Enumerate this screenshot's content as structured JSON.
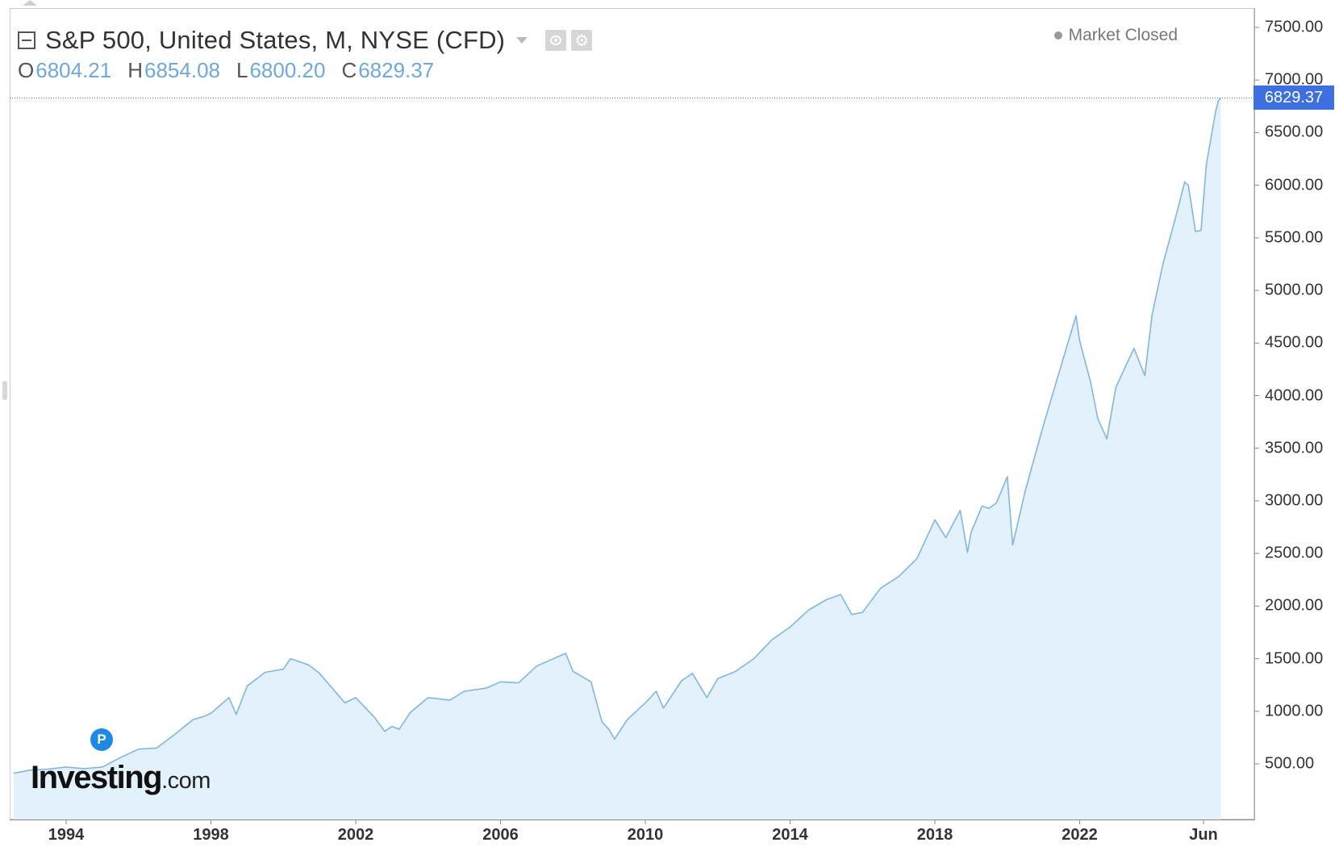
{
  "header": {
    "title": "S&P 500, United States, M, NYSE (CFD)",
    "ohlc": [
      {
        "key": "O",
        "value": "6804.21"
      },
      {
        "key": "H",
        "value": "6854.08"
      },
      {
        "key": "L",
        "value": "6800.20"
      },
      {
        "key": "C",
        "value": "6829.37"
      }
    ],
    "market_status": "Market Closed"
  },
  "last_price_label": "6829.37",
  "marker_label": "P",
  "logo": {
    "word": "Investing",
    "suffix": ".com"
  },
  "colors": {
    "line": "#7fb6e6",
    "fill": "#e2f1fb",
    "last_price_bg": "#3d6fe0",
    "marker": "#1e88e5"
  },
  "icons": [
    "collapse-icon",
    "chevron-down-icon",
    "eye-icon",
    "gear-icon"
  ],
  "chart_data": {
    "type": "area",
    "ylim": [
      0,
      7650
    ],
    "xlim": [
      1992.5,
      2026.5
    ],
    "yticks": [
      "500.00",
      "1000.00",
      "1500.00",
      "2000.00",
      "2500.00",
      "3000.00",
      "3500.00",
      "4000.00",
      "4500.00",
      "5000.00",
      "5500.00",
      "6000.00",
      "6500.00",
      "7000.00",
      "7500.00"
    ],
    "xticks": [
      {
        "label": "1994",
        "x": 1994.0
      },
      {
        "label": "1998",
        "x": 1998.0
      },
      {
        "label": "2002",
        "x": 2002.0
      },
      {
        "label": "2006",
        "x": 2006.0
      },
      {
        "label": "2010",
        "x": 2010.0
      },
      {
        "label": "2014",
        "x": 2014.0
      },
      {
        "label": "2018",
        "x": 2018.0
      },
      {
        "label": "2022",
        "x": 2022.0
      },
      {
        "label": "Jun",
        "x": 2025.42
      }
    ],
    "last_value": 6829.37,
    "points": [
      [
        1992.55,
        410
      ],
      [
        1993.0,
        440
      ],
      [
        1993.5,
        450
      ],
      [
        1994.0,
        470
      ],
      [
        1994.5,
        455
      ],
      [
        1995.0,
        470
      ],
      [
        1995.5,
        560
      ],
      [
        1996.0,
        640
      ],
      [
        1996.5,
        650
      ],
      [
        1997.0,
        780
      ],
      [
        1997.5,
        920
      ],
      [
        1997.8,
        950
      ],
      [
        1998.0,
        980
      ],
      [
        1998.5,
        1130
      ],
      [
        1998.7,
        970
      ],
      [
        1999.0,
        1240
      ],
      [
        1999.5,
        1370
      ],
      [
        2000.0,
        1400
      ],
      [
        2000.2,
        1500
      ],
      [
        2000.7,
        1440
      ],
      [
        2001.0,
        1360
      ],
      [
        2001.7,
        1080
      ],
      [
        2002.0,
        1130
      ],
      [
        2002.5,
        950
      ],
      [
        2002.8,
        810
      ],
      [
        2003.0,
        855
      ],
      [
        2003.2,
        830
      ],
      [
        2003.5,
        985
      ],
      [
        2004.0,
        1130
      ],
      [
        2004.6,
        1105
      ],
      [
        2005.0,
        1190
      ],
      [
        2005.6,
        1220
      ],
      [
        2006.0,
        1280
      ],
      [
        2006.5,
        1270
      ],
      [
        2007.0,
        1430
      ],
      [
        2007.8,
        1550
      ],
      [
        2008.0,
        1380
      ],
      [
        2008.5,
        1280
      ],
      [
        2008.8,
        900
      ],
      [
        2009.0,
        825
      ],
      [
        2009.15,
        735
      ],
      [
        2009.5,
        920
      ],
      [
        2010.0,
        1080
      ],
      [
        2010.3,
        1190
      ],
      [
        2010.5,
        1030
      ],
      [
        2011.0,
        1290
      ],
      [
        2011.3,
        1360
      ],
      [
        2011.7,
        1130
      ],
      [
        2012.0,
        1310
      ],
      [
        2012.5,
        1380
      ],
      [
        2013.0,
        1500
      ],
      [
        2013.5,
        1680
      ],
      [
        2014.0,
        1800
      ],
      [
        2014.5,
        1960
      ],
      [
        2015.0,
        2060
      ],
      [
        2015.4,
        2110
      ],
      [
        2015.7,
        1920
      ],
      [
        2016.0,
        1940
      ],
      [
        2016.5,
        2170
      ],
      [
        2017.0,
        2280
      ],
      [
        2017.5,
        2450
      ],
      [
        2018.0,
        2820
      ],
      [
        2018.3,
        2650
      ],
      [
        2018.7,
        2910
      ],
      [
        2018.9,
        2510
      ],
      [
        2019.0,
        2700
      ],
      [
        2019.3,
        2950
      ],
      [
        2019.5,
        2930
      ],
      [
        2019.7,
        2980
      ],
      [
        2020.0,
        3230
      ],
      [
        2020.15,
        2580
      ],
      [
        2020.5,
        3100
      ],
      [
        2021.0,
        3720
      ],
      [
        2021.5,
        4300
      ],
      [
        2021.9,
        4760
      ],
      [
        2022.0,
        4520
      ],
      [
        2022.3,
        4130
      ],
      [
        2022.5,
        3780
      ],
      [
        2022.75,
        3590
      ],
      [
        2023.0,
        4080
      ],
      [
        2023.5,
        4450
      ],
      [
        2023.8,
        4190
      ],
      [
        2024.0,
        4770
      ],
      [
        2024.3,
        5250
      ],
      [
        2024.7,
        5760
      ],
      [
        2024.9,
        6030
      ],
      [
        2025.0,
        6000
      ],
      [
        2025.2,
        5560
      ],
      [
        2025.35,
        5570
      ],
      [
        2025.5,
        6200
      ],
      [
        2025.75,
        6690
      ],
      [
        2025.83,
        6804
      ],
      [
        2025.9,
        6829
      ]
    ]
  }
}
